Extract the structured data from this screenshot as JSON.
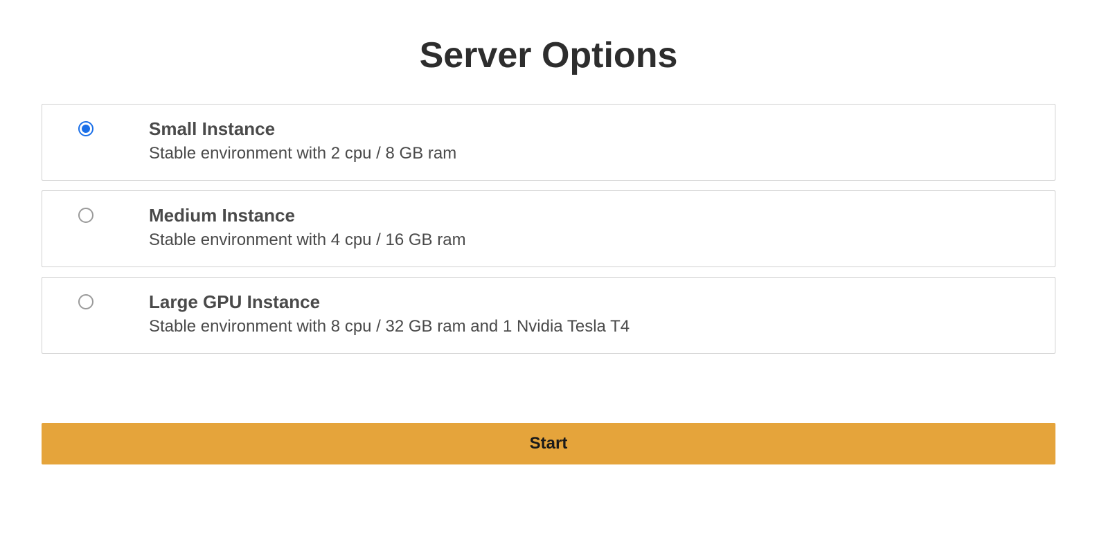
{
  "page": {
    "title": "Server Options"
  },
  "options": [
    {
      "title": "Small Instance",
      "description": "Stable environment with 2 cpu / 8 GB ram",
      "selected": true
    },
    {
      "title": "Medium Instance",
      "description": "Stable environment with 4 cpu / 16 GB ram",
      "selected": false
    },
    {
      "title": "Large GPU Instance",
      "description": "Stable environment with 8 cpu / 32 GB ram and 1 Nvidia Tesla T4",
      "selected": false
    }
  ],
  "actions": {
    "start_label": "Start"
  },
  "colors": {
    "accent": "#1a6fe8",
    "button_bg": "#e5a43b",
    "border": "#d0d0d0",
    "text_primary": "#2d2d2d",
    "text_secondary": "#4a4a4a",
    "radio_border_unchecked": "#9a9a9a"
  }
}
